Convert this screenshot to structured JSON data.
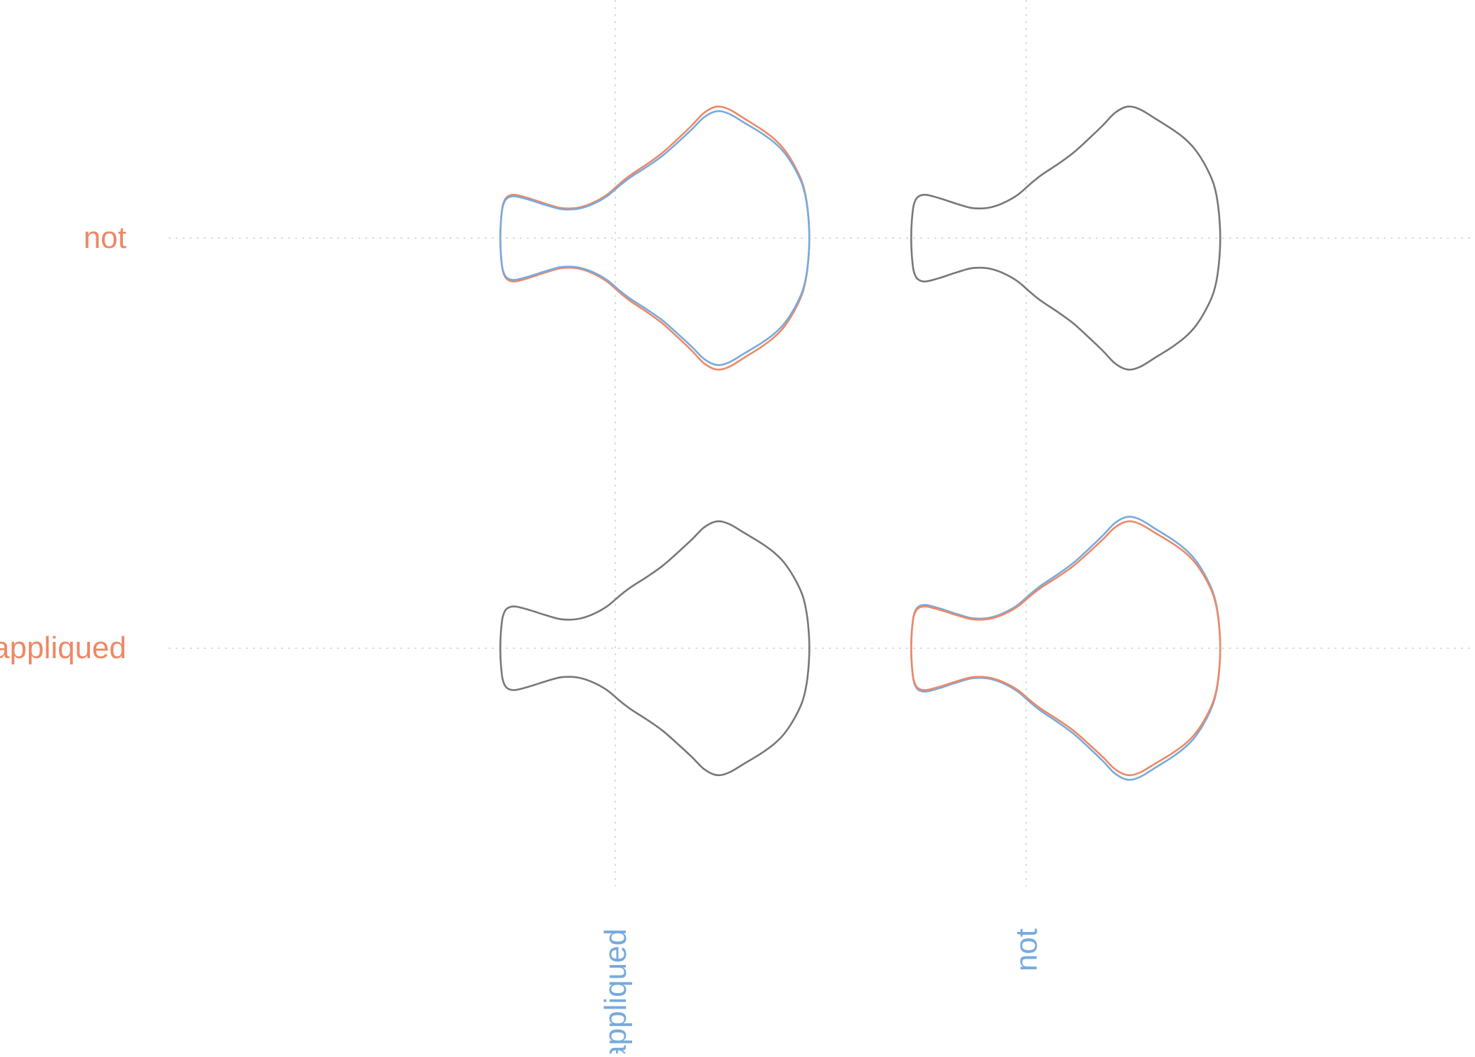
{
  "chart_data": {
    "type": "density-glyph-grid",
    "title": "",
    "xlabel": "",
    "ylabel": "",
    "colors": {
      "row_label": "#EE8866",
      "column_label": "#77AADD",
      "grid": "#DDDDDD",
      "background_glyph": "#777777",
      "series_orange": "#EE8866",
      "series_blue": "#77AADD"
    },
    "row_labels": [
      "not",
      "appliqued"
    ],
    "column_labels": [
      "appliqued",
      "not"
    ],
    "cells": [
      {
        "row": "not",
        "column": "appliqued",
        "glyphs": [
          {
            "color": "series_orange",
            "scale": 1.0
          },
          {
            "color": "series_blue",
            "scale": 0.965
          }
        ]
      },
      {
        "row": "not",
        "column": "not",
        "glyphs": [
          {
            "color": "background_glyph",
            "scale": 1.0
          }
        ]
      },
      {
        "row": "appliqued",
        "column": "appliqued",
        "glyphs": [
          {
            "color": "background_glyph",
            "scale": 0.965
          }
        ]
      },
      {
        "row": "appliqued",
        "column": "not",
        "glyphs": [
          {
            "color": "series_blue",
            "scale": 1.0
          },
          {
            "color": "series_orange",
            "scale": 0.965
          }
        ]
      }
    ]
  }
}
